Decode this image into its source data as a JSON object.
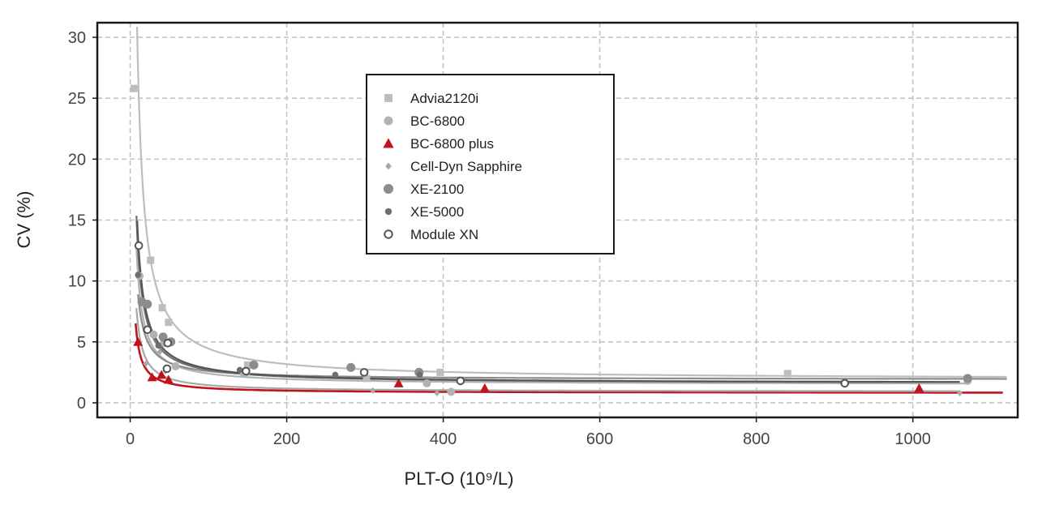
{
  "chart_data": {
    "type": "scatter",
    "title": "",
    "xlabel": "PLT-O (10⁹/L)",
    "ylabel": "CV (%)",
    "xlim": [
      -42,
      1134
    ],
    "ylim": [
      -1.2,
      31.2
    ],
    "xticks": [
      0,
      200,
      400,
      600,
      800,
      1000
    ],
    "yticks": [
      0,
      5,
      10,
      15,
      20,
      25,
      30
    ],
    "grid": true,
    "legend_position": "top-center",
    "series": [
      {
        "name": "Advia2120i",
        "marker": "square",
        "color": "#bdbdbd",
        "points": [
          [
            5,
            25.8
          ],
          [
            26,
            11.7
          ],
          [
            41,
            7.8
          ],
          [
            49,
            6.6
          ],
          [
            150,
            3.1
          ],
          [
            302,
            2.0
          ],
          [
            396,
            2.5
          ],
          [
            840,
            2.4
          ]
        ],
        "fit": {
          "c": 1.9,
          "a": 255,
          "x_range": [
            6,
            1120
          ]
        }
      },
      {
        "name": "BC-6800",
        "marker": "circle",
        "color": "#b2b2b2",
        "points": [
          [
            12,
            10.4
          ],
          [
            30,
            5.6
          ],
          [
            43,
            4.9
          ],
          [
            58,
            3.0
          ],
          [
            145,
            2.4
          ],
          [
            379,
            1.6
          ],
          [
            410,
            0.9
          ],
          [
            1070,
            1.8
          ]
        ],
        "fit": {
          "c": 1.5,
          "a": 90,
          "x_range": [
            8,
            1070
          ]
        }
      },
      {
        "name": "BC-6800 plus",
        "marker": "triangle",
        "color": "#c0141c",
        "points": [
          [
            10,
            5.0
          ],
          [
            28,
            2.1
          ],
          [
            40,
            2.3
          ],
          [
            49,
            1.9
          ],
          [
            343,
            1.6
          ],
          [
            453,
            1.2
          ],
          [
            1008,
            1.2
          ]
        ],
        "fit": {
          "c": 0.8,
          "a": 40,
          "x_range": [
            7,
            1115
          ]
        }
      },
      {
        "name": "Cell-Dyn Sapphire",
        "marker": "diamond",
        "color": "#a8a8a8",
        "points": [
          [
            20,
            3.2
          ],
          [
            38,
            4.2
          ],
          [
            45,
            2.6
          ],
          [
            150,
            2.4
          ],
          [
            310,
            1.0
          ],
          [
            392,
            0.8
          ],
          [
            1060,
            0.8
          ]
        ],
        "fit": {
          "c": 0.9,
          "a": 55,
          "x_range": [
            8,
            1060
          ]
        }
      },
      {
        "name": "XE-2100",
        "marker": "circle-large",
        "color": "#8c8c8c",
        "points": [
          [
            15,
            8.3
          ],
          [
            22,
            8.1
          ],
          [
            42,
            5.4
          ],
          [
            52,
            5.0
          ],
          [
            158,
            3.1
          ],
          [
            282,
            2.9
          ],
          [
            369,
            2.5
          ],
          [
            1070,
            2.0
          ]
        ],
        "fit": {
          "c": 1.9,
          "a": 70,
          "x_range": [
            10,
            1120
          ]
        }
      },
      {
        "name": "XE-5000",
        "marker": "circle-small",
        "color": "#6e6e6e",
        "points": [
          [
            10,
            10.5
          ],
          [
            36,
            4.7
          ],
          [
            140,
            2.7
          ],
          [
            262,
            2.3
          ],
          [
            370,
            2.3
          ]
        ],
        "fit": {
          "c": 1.6,
          "a": 110,
          "x_range": [
            8,
            960
          ]
        }
      },
      {
        "name": "Module XN",
        "marker": "open-circle",
        "color": "#555555",
        "points": [
          [
            11,
            12.9
          ],
          [
            22,
            6.0
          ],
          [
            48,
            4.9
          ],
          [
            47,
            2.8
          ],
          [
            148,
            2.6
          ],
          [
            299,
            2.5
          ],
          [
            422,
            1.8
          ],
          [
            913,
            1.6
          ]
        ],
        "fit": {
          "c": 1.6,
          "a": 120,
          "x_range": [
            9,
            1060
          ]
        }
      }
    ]
  }
}
